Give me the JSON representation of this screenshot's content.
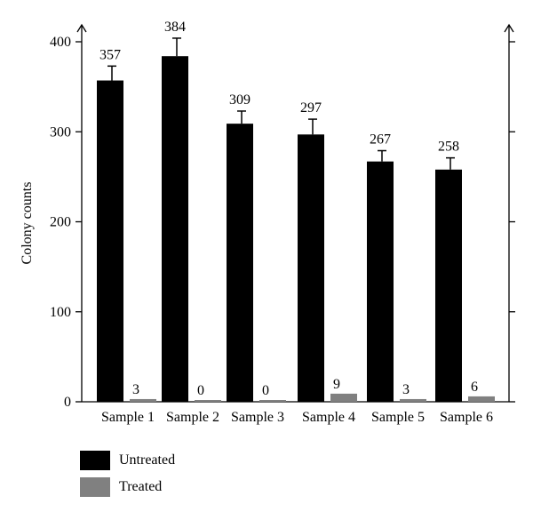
{
  "chart_data": {
    "type": "bar",
    "categories": [
      "Sample 1",
      "Sample 2",
      "Sample 3",
      "Sample 4",
      "Sample 5",
      "Sample 6"
    ],
    "series": [
      {
        "name": "Untreated",
        "color": "#000000",
        "values": [
          357,
          384,
          309,
          297,
          267,
          258
        ],
        "errors": [
          16,
          20,
          14,
          17,
          12,
          13
        ],
        "labels": [
          "357",
          "384",
          "309",
          "297",
          "267",
          "258"
        ]
      },
      {
        "name": "Treated",
        "color": "#808080",
        "values": [
          3,
          0,
          0,
          9,
          3,
          6
        ],
        "labels": [
          "3",
          "0",
          "0",
          "9",
          "3",
          "6"
        ]
      }
    ],
    "ylabel": "Colony counts",
    "xlabel": "",
    "ylim": [
      0,
      400
    ],
    "yticks": [
      0,
      100,
      200,
      300,
      400
    ],
    "legend_position": "bottom-left",
    "grid": false
  }
}
